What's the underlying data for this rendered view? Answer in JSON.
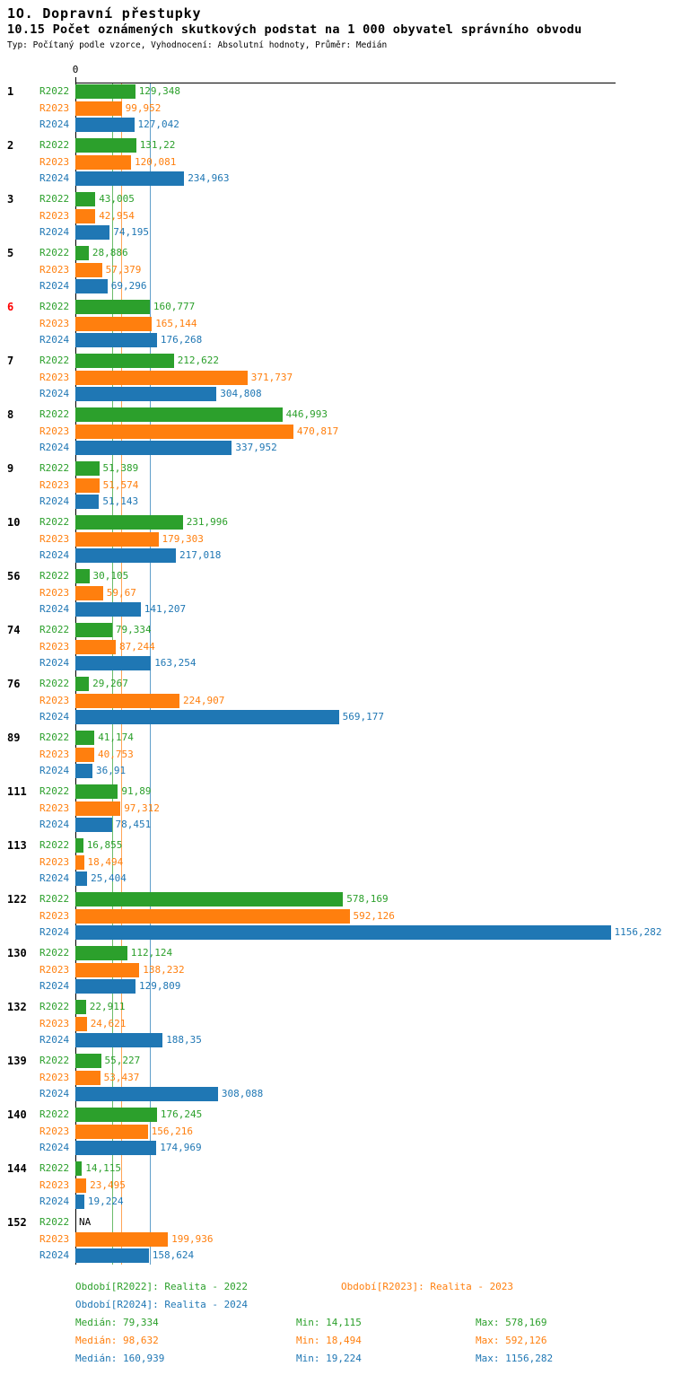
{
  "title": "1O. Dopravní přestupky",
  "subtitle": "10.15 Počet oznámených skutkových podstat na 1 000 obyvatel správního obvodu",
  "meta": "Typ: Počítaný podle vzorce, Vyhodnocení: Absolutní hodnoty, Průměr: Medián",
  "axis_zero": "0",
  "colors": {
    "r2022": "#2ca02c",
    "r2023": "#ff7f0e",
    "r2024": "#1f77b4",
    "highlight": "#ff0000",
    "axis": "#000000"
  },
  "chart_data": {
    "type": "bar",
    "orientation": "horizontal",
    "title": "10.15 Počet oznámených skutkových podstat na 1 000 obyvatel správního obvodu",
    "xlabel": "",
    "ylabel": "správní obvod",
    "xlim": [
      0,
      1163
    ],
    "grid": false,
    "legend_position": "bottom",
    "categories": [
      "1",
      "2",
      "3",
      "5",
      "6",
      "7",
      "8",
      "9",
      "10",
      "56",
      "74",
      "76",
      "89",
      "111",
      "113",
      "122",
      "130",
      "132",
      "139",
      "140",
      "144",
      "152"
    ],
    "highlighted_categories": [
      "6"
    ],
    "series": [
      {
        "name": "R2022",
        "color": "#2ca02c",
        "labels": [
          "129,348",
          "131,22",
          "43,005",
          "28,886",
          "160,777",
          "212,622",
          "446,993",
          "51,389",
          "231,996",
          "30,105",
          "79,334",
          "29,267",
          "41,174",
          "91,89",
          "16,855",
          "578,169",
          "112,124",
          "22,911",
          "55,227",
          "176,245",
          "14,115",
          "NA"
        ],
        "values": [
          129.348,
          131.22,
          43.005,
          28.886,
          160.777,
          212.622,
          446.993,
          51.389,
          231.996,
          30.105,
          79.334,
          29.267,
          41.174,
          91.89,
          16.855,
          578.169,
          112.124,
          22.911,
          55.227,
          176.245,
          14.115,
          null
        ]
      },
      {
        "name": "R2023",
        "color": "#ff7f0e",
        "labels": [
          "99,952",
          "120,081",
          "42,954",
          "57,379",
          "165,144",
          "371,737",
          "470,817",
          "51,574",
          "179,303",
          "59,67",
          "87,244",
          "224,907",
          "40,753",
          "97,312",
          "18,494",
          "592,126",
          "138,232",
          "24,621",
          "53,437",
          "156,216",
          "23,495",
          "199,936"
        ],
        "values": [
          99.952,
          120.081,
          42.954,
          57.379,
          165.144,
          371.737,
          470.817,
          51.574,
          179.303,
          59.67,
          87.244,
          224.907,
          40.753,
          97.312,
          18.494,
          592.126,
          138.232,
          24.621,
          53.437,
          156.216,
          23.495,
          199.936
        ]
      },
      {
        "name": "R2024",
        "color": "#1f77b4",
        "labels": [
          "127,042",
          "234,963",
          "74,195",
          "69,296",
          "176,268",
          "304,808",
          "337,952",
          "51,143",
          "217,018",
          "141,207",
          "163,254",
          "569,177",
          "36,91",
          "78,451",
          "25,404",
          "1156,282",
          "129,809",
          "188,35",
          "308,088",
          "174,969",
          "19,224",
          "158,624"
        ],
        "values": [
          127.042,
          234.963,
          74.195,
          69.296,
          176.268,
          304.808,
          337.952,
          51.143,
          217.018,
          141.207,
          163.254,
          569.177,
          36.91,
          78.451,
          25.404,
          1156.282,
          129.809,
          188.35,
          308.088,
          174.969,
          19.224,
          158.624
        ]
      }
    ],
    "medians": [
      {
        "series": "R2022",
        "value": 79.334,
        "color": "#2ca02c"
      },
      {
        "series": "R2023",
        "value": 98.632,
        "color": "#ff7f0e"
      },
      {
        "series": "R2024",
        "value": 160.939,
        "color": "#1f77b4"
      }
    ],
    "na_label": "NA"
  },
  "footer": {
    "legend": [
      {
        "label": "Období[R2022]: Realita - 2022",
        "color": "#2ca02c"
      },
      {
        "label": "Období[R2023]: Realita - 2023",
        "color": "#ff7f0e"
      },
      {
        "label": "Období[R2024]: Realita - 2024",
        "color": "#1f77b4"
      }
    ],
    "stats": [
      {
        "median": "Medián: 79,334",
        "min": "Min: 14,115",
        "max": "Max: 578,169",
        "color": "#2ca02c"
      },
      {
        "median": "Medián: 98,632",
        "min": "Min: 18,494",
        "max": "Max: 592,126",
        "color": "#ff7f0e"
      },
      {
        "median": "Medián: 160,939",
        "min": "Min: 19,224",
        "max": "Max: 1156,282",
        "color": "#1f77b4"
      }
    ]
  }
}
